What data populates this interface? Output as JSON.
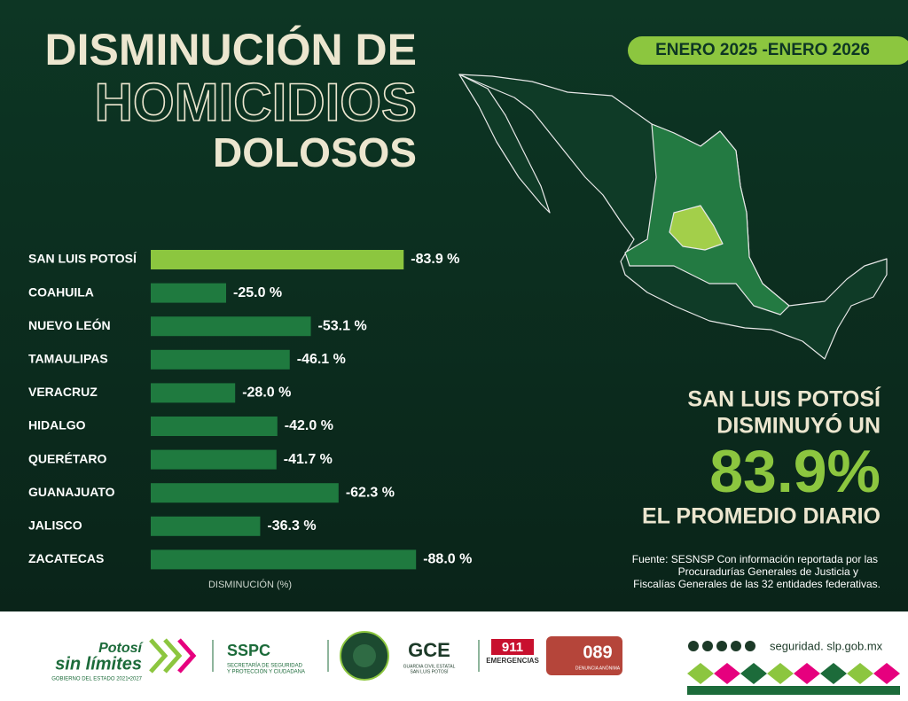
{
  "header": {
    "title_line1": "DISMINUCIÓN DE",
    "title_line2": "HOMICIDIOS",
    "title_line3": "DOLOSOS",
    "period": "ENERO 2025 -ENERO 2026"
  },
  "chart_data": {
    "type": "hbar",
    "categories": [
      "SAN LUIS POTOSÍ",
      "COAHUILA",
      "NUEVO LEÓN",
      "TAMAULIPAS",
      "VERACRUZ",
      "HIDALGO",
      "QUERÉTARO",
      "GUANAJUATO",
      "JALISCO",
      "ZACATECAS"
    ],
    "values": [
      -83.9,
      -25.0,
      -53.1,
      -46.1,
      -28.0,
      -42.0,
      -41.7,
      -62.3,
      -36.3,
      -88.0
    ],
    "value_labels": [
      "-83.9 %",
      "-25.0 %",
      "-53.1 %",
      "-46.1 %",
      "-28.0 %",
      "-42.0 %",
      "-41.7 %",
      "-62.3 %",
      "-36.3 %",
      "-88.0 %"
    ],
    "colors": [
      "#8cc63f",
      "#1f7a3f",
      "#1f7a3f",
      "#1f7a3f",
      "#1f7a3f",
      "#1f7a3f",
      "#1f7a3f",
      "#1f7a3f",
      "#1f7a3f",
      "#1f7a3f"
    ],
    "xlim": [
      0,
      -100
    ],
    "xlabel": "DISMINUCIÓN (%)"
  },
  "callout": {
    "line1": "SAN LUIS POTOSÍ",
    "line2": "DISMINUYÓ UN",
    "value": "83.9%",
    "line3": "EL PROMEDIO DIARIO"
  },
  "source": {
    "line1": "Fuente: SESNSP Con información reportada por las",
    "line2": "Procuradurías Generales de Justicia y",
    "line3": "Fiscalías Generales de las 32 entidades federativas."
  },
  "footer": {
    "brand1": "Potosí",
    "brand2": "sin límites",
    "brand3": "GOBIERNO DEL ESTADO 2021•2027",
    "sspc": "SSPC",
    "sspc_sub1": "SECRETARÍA DE SEGURIDAD",
    "sspc_sub2": "Y PROTECCIÓN Y CIUDADANA",
    "gce": "GCE",
    "gce_sub1": "GUARDIA CIVIL ESTATAL",
    "gce_sub2": "SAN LUIS POTOSÍ",
    "n911": "911",
    "n911_sub": "EMERGENCIAS",
    "n089": "089",
    "n089_sub": "DENUNCIA ANÓNIMA",
    "website": "seguridad. slp.gob.mx"
  }
}
